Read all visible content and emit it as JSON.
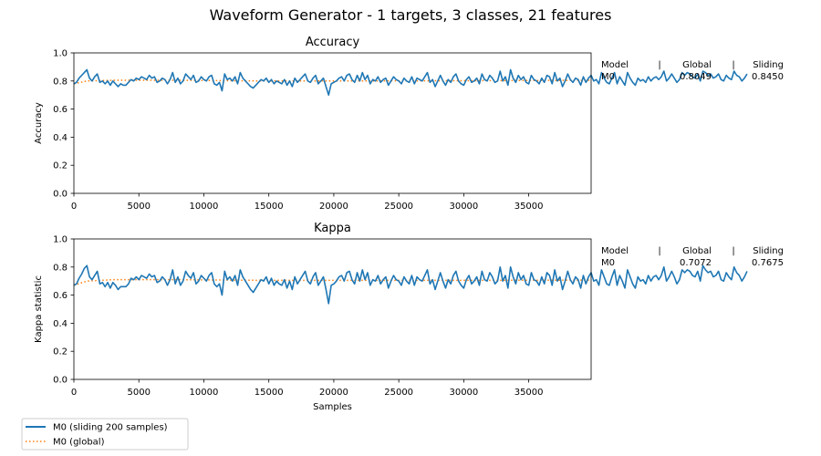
{
  "suptitle": "Waveform Generator - 1 targets, 3 classes, 21 features",
  "colors": {
    "sliding": "#1f77b4",
    "global": "#ff7f0e"
  },
  "legend": {
    "entries": [
      "M0  (sliding 200 samples)",
      "M0 (global)"
    ],
    "placement": "bottom-left"
  },
  "chart_data": [
    {
      "type": "line",
      "title": "Accuracy",
      "xlabel": "",
      "ylabel": "Accuracy",
      "xlim": [
        0,
        39800
      ],
      "ylim": [
        0.0,
        1.0
      ],
      "xticks": [
        0,
        5000,
        10000,
        15000,
        20000,
        25000,
        30000,
        35000
      ],
      "yticks": [
        0.0,
        0.2,
        0.4,
        0.6,
        0.8,
        1.0
      ],
      "xtick_labels": [
        "0",
        "5000",
        "10000",
        "15000",
        "20000",
        "25000",
        "30000",
        "35000"
      ],
      "ytick_labels": [
        "0.0",
        "0.2",
        "0.4",
        "0.6",
        "0.8",
        "1.0"
      ],
      "grid": false,
      "table": {
        "headers": [
          "Model",
          "|",
          "Global",
          "|",
          "Sliding"
        ],
        "row": [
          "M0",
          "0.8049",
          "0.8450"
        ]
      },
      "series": [
        {
          "name": "M0  (sliding 200 samples)",
          "style": "solid",
          "x_step": 200,
          "values": [
            0.78,
            0.79,
            0.82,
            0.84,
            0.86,
            0.88,
            0.82,
            0.8,
            0.83,
            0.85,
            0.79,
            0.8,
            0.78,
            0.8,
            0.77,
            0.8,
            0.78,
            0.76,
            0.78,
            0.77,
            0.77,
            0.79,
            0.81,
            0.8,
            0.82,
            0.81,
            0.83,
            0.82,
            0.81,
            0.84,
            0.82,
            0.83,
            0.79,
            0.8,
            0.82,
            0.81,
            0.78,
            0.81,
            0.86,
            0.79,
            0.82,
            0.78,
            0.8,
            0.85,
            0.83,
            0.81,
            0.84,
            0.79,
            0.8,
            0.83,
            0.81,
            0.8,
            0.83,
            0.84,
            0.78,
            0.77,
            0.79,
            0.73,
            0.85,
            0.81,
            0.82,
            0.8,
            0.83,
            0.78,
            0.86,
            0.82,
            0.8,
            0.78,
            0.76,
            0.75,
            0.77,
            0.79,
            0.81,
            0.8,
            0.82,
            0.79,
            0.81,
            0.78,
            0.8,
            0.79,
            0.78,
            0.81,
            0.77,
            0.8,
            0.76,
            0.82,
            0.79,
            0.81,
            0.83,
            0.85,
            0.8,
            0.79,
            0.82,
            0.84,
            0.78,
            0.8,
            0.82,
            0.76,
            0.7,
            0.78,
            0.79,
            0.8,
            0.82,
            0.83,
            0.8,
            0.84,
            0.85,
            0.81,
            0.79,
            0.84,
            0.8,
            0.86,
            0.81,
            0.84,
            0.78,
            0.81,
            0.8,
            0.83,
            0.79,
            0.81,
            0.82,
            0.77,
            0.8,
            0.83,
            0.81,
            0.8,
            0.78,
            0.82,
            0.8,
            0.79,
            0.83,
            0.78,
            0.82,
            0.81,
            0.8,
            0.83,
            0.86,
            0.79,
            0.81,
            0.76,
            0.8,
            0.84,
            0.8,
            0.77,
            0.81,
            0.79,
            0.83,
            0.85,
            0.8,
            0.78,
            0.77,
            0.81,
            0.83,
            0.79,
            0.8,
            0.82,
            0.78,
            0.85,
            0.81,
            0.8,
            0.84,
            0.82,
            0.79,
            0.8,
            0.87,
            0.8,
            0.83,
            0.77,
            0.88,
            0.82,
            0.79,
            0.84,
            0.81,
            0.83,
            0.79,
            0.78,
            0.84,
            0.81,
            0.8,
            0.78,
            0.82,
            0.79,
            0.84,
            0.83,
            0.78,
            0.86,
            0.8,
            0.82,
            0.76,
            0.8,
            0.85,
            0.81,
            0.79,
            0.82,
            0.81,
            0.77,
            0.83,
            0.79,
            0.82,
            0.84,
            0.8,
            0.81,
            0.78,
            0.86,
            0.82,
            0.79,
            0.78,
            0.82,
            0.86,
            0.78,
            0.83,
            0.8,
            0.77,
            0.86,
            0.82,
            0.79,
            0.77,
            0.82,
            0.8,
            0.81,
            0.79,
            0.83,
            0.8,
            0.82,
            0.83,
            0.81,
            0.83,
            0.87,
            0.8,
            0.82,
            0.85,
            0.82,
            0.79,
            0.81,
            0.86,
            0.84,
            0.86,
            0.85,
            0.83,
            0.82,
            0.85,
            0.8,
            0.87,
            0.86,
            0.84,
            0.85,
            0.82,
            0.83,
            0.85,
            0.81,
            0.8,
            0.84,
            0.82,
            0.81,
            0.87,
            0.84,
            0.83,
            0.8,
            0.82,
            0.85
          ]
        },
        {
          "name": "M0 (global)",
          "style": "dotted",
          "x": [
            0,
            1000,
            3000,
            8000,
            15000,
            20000,
            30000,
            39800
          ],
          "values": [
            0.78,
            0.8,
            0.805,
            0.805,
            0.8,
            0.8,
            0.802,
            0.805
          ]
        }
      ]
    },
    {
      "type": "line",
      "title": "Kappa",
      "xlabel": "Samples",
      "ylabel": "Kappa statistic",
      "xlim": [
        0,
        39800
      ],
      "ylim": [
        0.0,
        1.0
      ],
      "xticks": [
        0,
        5000,
        10000,
        15000,
        20000,
        25000,
        30000,
        35000
      ],
      "yticks": [
        0.0,
        0.2,
        0.4,
        0.6,
        0.8,
        1.0
      ],
      "xtick_labels": [
        "0",
        "5000",
        "10000",
        "15000",
        "20000",
        "25000",
        "30000",
        "35000"
      ],
      "ytick_labels": [
        "0.0",
        "0.2",
        "0.4",
        "0.6",
        "0.8",
        "1.0"
      ],
      "grid": false,
      "table": {
        "headers": [
          "Model",
          "|",
          "Global",
          "|",
          "Sliding"
        ],
        "row": [
          "M0",
          "0.7072",
          "0.7675"
        ]
      },
      "series": [
        {
          "name": "M0  (sliding 200 samples)",
          "style": "solid",
          "x_step": 200,
          "values": [
            0.67,
            0.68,
            0.72,
            0.75,
            0.79,
            0.81,
            0.73,
            0.71,
            0.74,
            0.77,
            0.68,
            0.69,
            0.66,
            0.69,
            0.65,
            0.69,
            0.67,
            0.64,
            0.66,
            0.66,
            0.66,
            0.68,
            0.72,
            0.71,
            0.73,
            0.71,
            0.74,
            0.73,
            0.72,
            0.75,
            0.73,
            0.74,
            0.69,
            0.7,
            0.73,
            0.71,
            0.67,
            0.71,
            0.78,
            0.68,
            0.73,
            0.67,
            0.7,
            0.77,
            0.74,
            0.72,
            0.76,
            0.68,
            0.7,
            0.74,
            0.72,
            0.7,
            0.74,
            0.76,
            0.68,
            0.66,
            0.68,
            0.6,
            0.77,
            0.71,
            0.73,
            0.7,
            0.74,
            0.67,
            0.78,
            0.73,
            0.7,
            0.67,
            0.64,
            0.62,
            0.65,
            0.68,
            0.71,
            0.7,
            0.73,
            0.68,
            0.72,
            0.67,
            0.7,
            0.68,
            0.67,
            0.71,
            0.65,
            0.7,
            0.64,
            0.73,
            0.68,
            0.71,
            0.74,
            0.77,
            0.7,
            0.68,
            0.73,
            0.76,
            0.67,
            0.7,
            0.73,
            0.64,
            0.54,
            0.67,
            0.68,
            0.7,
            0.73,
            0.74,
            0.7,
            0.76,
            0.77,
            0.71,
            0.68,
            0.76,
            0.7,
            0.78,
            0.71,
            0.76,
            0.67,
            0.71,
            0.7,
            0.74,
            0.68,
            0.71,
            0.73,
            0.65,
            0.7,
            0.74,
            0.71,
            0.7,
            0.67,
            0.73,
            0.7,
            0.68,
            0.74,
            0.67,
            0.73,
            0.71,
            0.7,
            0.74,
            0.78,
            0.68,
            0.71,
            0.64,
            0.7,
            0.76,
            0.7,
            0.65,
            0.71,
            0.68,
            0.74,
            0.77,
            0.7,
            0.67,
            0.65,
            0.71,
            0.74,
            0.68,
            0.7,
            0.73,
            0.67,
            0.77,
            0.71,
            0.7,
            0.76,
            0.73,
            0.68,
            0.7,
            0.8,
            0.7,
            0.74,
            0.65,
            0.8,
            0.73,
            0.68,
            0.76,
            0.71,
            0.74,
            0.68,
            0.67,
            0.76,
            0.71,
            0.7,
            0.67,
            0.73,
            0.68,
            0.76,
            0.74,
            0.67,
            0.78,
            0.7,
            0.73,
            0.64,
            0.7,
            0.77,
            0.71,
            0.68,
            0.73,
            0.71,
            0.65,
            0.74,
            0.68,
            0.73,
            0.76,
            0.7,
            0.71,
            0.67,
            0.78,
            0.73,
            0.68,
            0.67,
            0.73,
            0.78,
            0.67,
            0.74,
            0.7,
            0.65,
            0.78,
            0.73,
            0.68,
            0.65,
            0.73,
            0.7,
            0.71,
            0.68,
            0.74,
            0.7,
            0.73,
            0.74,
            0.71,
            0.74,
            0.8,
            0.7,
            0.73,
            0.77,
            0.73,
            0.68,
            0.71,
            0.78,
            0.76,
            0.78,
            0.77,
            0.74,
            0.73,
            0.77,
            0.7,
            0.81,
            0.78,
            0.76,
            0.77,
            0.73,
            0.74,
            0.77,
            0.71,
            0.7,
            0.76,
            0.73,
            0.71,
            0.8,
            0.76,
            0.74,
            0.7,
            0.73,
            0.77
          ]
        },
        {
          "name": "M0 (global)",
          "style": "dotted",
          "x": [
            0,
            1000,
            3000,
            8000,
            15000,
            20000,
            30000,
            39800
          ],
          "values": [
            0.67,
            0.7,
            0.71,
            0.71,
            0.705,
            0.705,
            0.705,
            0.707
          ]
        }
      ]
    }
  ]
}
